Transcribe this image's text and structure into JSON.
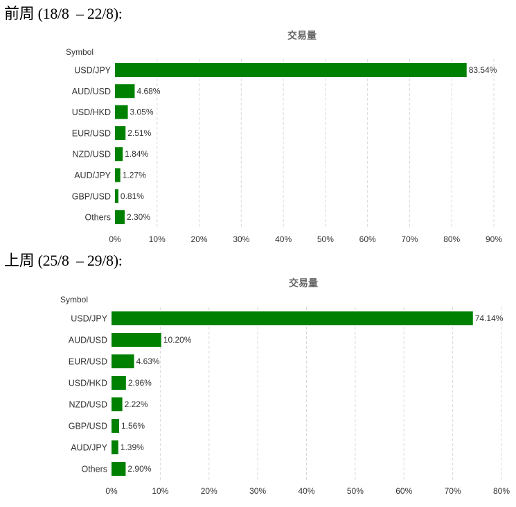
{
  "sections": [
    {
      "heading": "前周 (18/8  – 22/8):"
    },
    {
      "heading": "上周 (25/8  – 29/8):"
    }
  ],
  "chart_data": [
    {
      "type": "bar",
      "orientation": "horizontal",
      "title": "交易量",
      "ylabel": "Symbol",
      "xlabel": "",
      "categories": [
        "USD/JPY",
        "AUD/USD",
        "USD/HKD",
        "EUR/USD",
        "NZD/USD",
        "AUD/JPY",
        "GBP/USD",
        "Others"
      ],
      "values": [
        83.54,
        4.68,
        3.05,
        2.51,
        1.84,
        1.27,
        0.81,
        2.3
      ],
      "data_labels": [
        "83.54%",
        "4.68%",
        "3.05%",
        "2.51%",
        "1.84%",
        "1.27%",
        "0.81%",
        "2.30%"
      ],
      "xlim": [
        0,
        90
      ],
      "xticks": [
        0,
        10,
        20,
        30,
        40,
        50,
        60,
        70,
        80,
        90
      ],
      "xtick_labels": [
        "0%",
        "10%",
        "20%",
        "30%",
        "40%",
        "50%",
        "60%",
        "70%",
        "80%",
        "90%"
      ],
      "grid": "vertical dashed",
      "bar_color": "#008000"
    },
    {
      "type": "bar",
      "orientation": "horizontal",
      "title": "交易量",
      "ylabel": "Symbol",
      "xlabel": "",
      "categories": [
        "USD/JPY",
        "AUD/USD",
        "EUR/USD",
        "USD/HKD",
        "NZD/USD",
        "GBP/USD",
        "AUD/JPY",
        "Others"
      ],
      "values": [
        74.14,
        10.2,
        4.63,
        2.96,
        2.22,
        1.56,
        1.39,
        2.9
      ],
      "data_labels": [
        "74.14%",
        "10.20%",
        "4.63%",
        "2.96%",
        "2.22%",
        "1.56%",
        "1.39%",
        "2.90%"
      ],
      "xlim": [
        0,
        80
      ],
      "xticks": [
        0,
        10,
        20,
        30,
        40,
        50,
        60,
        70,
        80
      ],
      "xtick_labels": [
        "0%",
        "10%",
        "20%",
        "30%",
        "40%",
        "50%",
        "60%",
        "70%",
        "80%"
      ],
      "grid": "vertical dashed",
      "bar_color": "#008000"
    }
  ]
}
